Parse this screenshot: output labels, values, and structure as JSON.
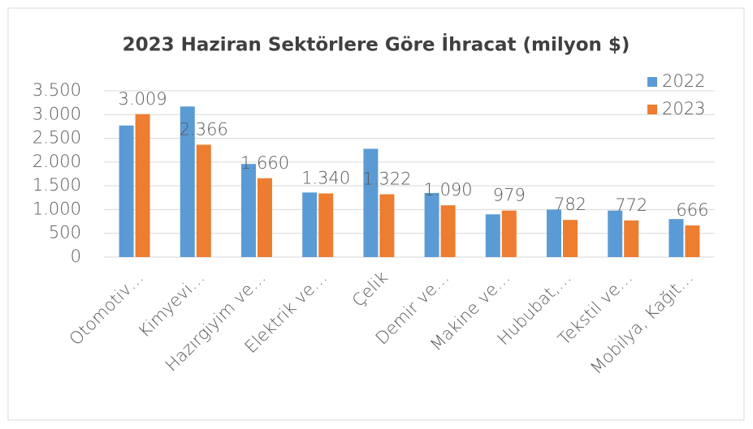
{
  "chart_data": {
    "type": "bar",
    "title": "2023 Haziran Sektörlere Göre İhracat (milyon $)",
    "categories": [
      "Otomotiv…",
      "Kimyevi…",
      "Hazırgiyim ve…",
      "Elektrik ve…",
      "Çelik",
      "Demir ve…",
      "Makine ve…",
      "Hububat,…",
      "Tekstil ve…",
      "Mobilya, Kağıt…"
    ],
    "series": [
      {
        "name": "2022",
        "color": "#5b9bd5",
        "values": [
          2770,
          3170,
          1960,
          1360,
          2280,
          1350,
          900,
          1000,
          980,
          800
        ]
      },
      {
        "name": "2023",
        "color": "#ed7d31",
        "values": [
          3009,
          2366,
          1660,
          1340,
          1322,
          1090,
          979,
          782,
          772,
          666
        ],
        "value_labels": [
          "3.009",
          "2.366",
          "1.660",
          "1.340",
          "1.322",
          "1.090",
          "979",
          "782",
          "772",
          "666"
        ]
      }
    ],
    "ylim": [
      0,
      3500
    ],
    "yticks": [
      0,
      500,
      {
        "value": 1000,
        "label": "1.000"
      },
      {
        "value": 1500,
        "label": "1.500"
      },
      {
        "value": 2000,
        "label": "2.000"
      },
      {
        "value": 2500,
        "label": "2.500"
      },
      {
        "value": 3000,
        "label": "3.000"
      },
      {
        "value": 3500,
        "label": "3.500"
      }
    ],
    "grid": true,
    "legend": "top-right"
  }
}
